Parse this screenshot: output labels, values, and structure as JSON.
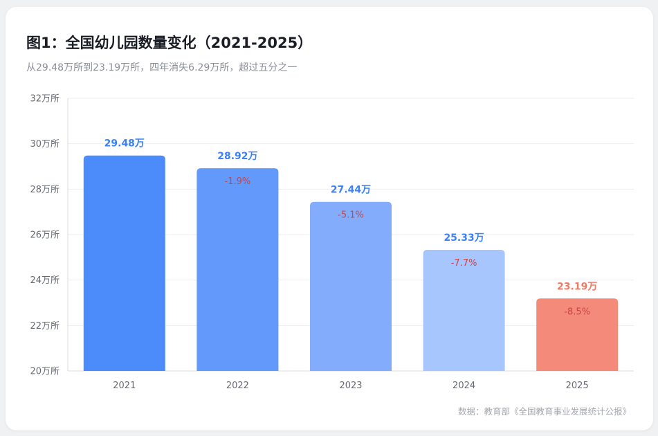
{
  "card": {
    "title": "图1：全国幼儿园数量变化（2021-2025）",
    "subtitle": "从29.48万所到23.19万所，四年消失6.29万所，超过五分之一",
    "source": "数据：教育部《全国教育事业发展统计公报》"
  },
  "colors": {
    "bar_2021": "#4b8bfa",
    "bar_2022": "#6299fb",
    "bar_2023": "#83adfc",
    "bar_2024": "#a6c6fd",
    "bar_2025": "#f48b7a",
    "label_blue": "#3b82f6",
    "label_red": "#f07a62",
    "change_text": "#c94545",
    "grid": "#eceef1",
    "tick": "#666a70"
  },
  "chart_data": {
    "type": "bar",
    "title": "图1：全国幼儿园数量变化（2021-2025）",
    "subtitle": "从29.48万所到23.19万所，四年消失6.29万所，超过五分之一",
    "categories": [
      "2021",
      "2022",
      "2023",
      "2024",
      "2025"
    ],
    "values": [
      29.48,
      28.92,
      27.44,
      25.33,
      23.19
    ],
    "value_labels": [
      "29.48万",
      "28.92万",
      "27.44万",
      "25.33万",
      "23.19万"
    ],
    "change_labels": [
      "",
      "-1.9%",
      "-5.1%",
      "-7.7%",
      "-8.5%"
    ],
    "y_ticks": [
      20,
      22,
      24,
      26,
      28,
      30,
      32
    ],
    "y_tick_labels": [
      "20万所",
      "22万所",
      "24万所",
      "26万所",
      "28万所",
      "30万所",
      "32万所"
    ],
    "ylim": [
      20,
      32
    ],
    "grid": true,
    "legend": "none"
  }
}
